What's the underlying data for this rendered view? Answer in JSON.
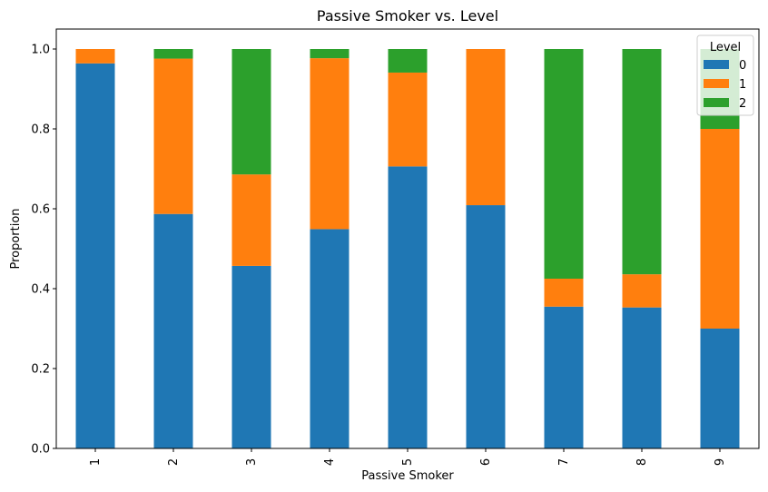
{
  "chart_data": {
    "type": "bar",
    "stacked": true,
    "title": "Passive Smoker vs. Level",
    "xlabel": "Passive Smoker",
    "ylabel": "Proportion",
    "categories": [
      "1",
      "2",
      "3",
      "4",
      "5",
      "6",
      "7",
      "8",
      "9"
    ],
    "series": [
      {
        "name": "0",
        "color": "#1f77b4",
        "values": [
          0.964,
          0.587,
          0.457,
          0.549,
          0.706,
          0.609,
          0.355,
          0.353,
          0.3
        ]
      },
      {
        "name": "1",
        "color": "#ff7f0e",
        "values": [
          0.036,
          0.389,
          0.229,
          0.428,
          0.235,
          0.391,
          0.07,
          0.083,
          0.5
        ]
      },
      {
        "name": "2",
        "color": "#2ca02c",
        "values": [
          0.0,
          0.024,
          0.314,
          0.023,
          0.059,
          0.0,
          0.575,
          0.564,
          0.2
        ]
      }
    ],
    "ylim": [
      0,
      1.05
    ],
    "yticks": [
      "0.0",
      "0.2",
      "0.4",
      "0.6",
      "0.8",
      "1.0"
    ],
    "legend": {
      "title": "Level",
      "position": "top-right"
    },
    "grid": false
  }
}
